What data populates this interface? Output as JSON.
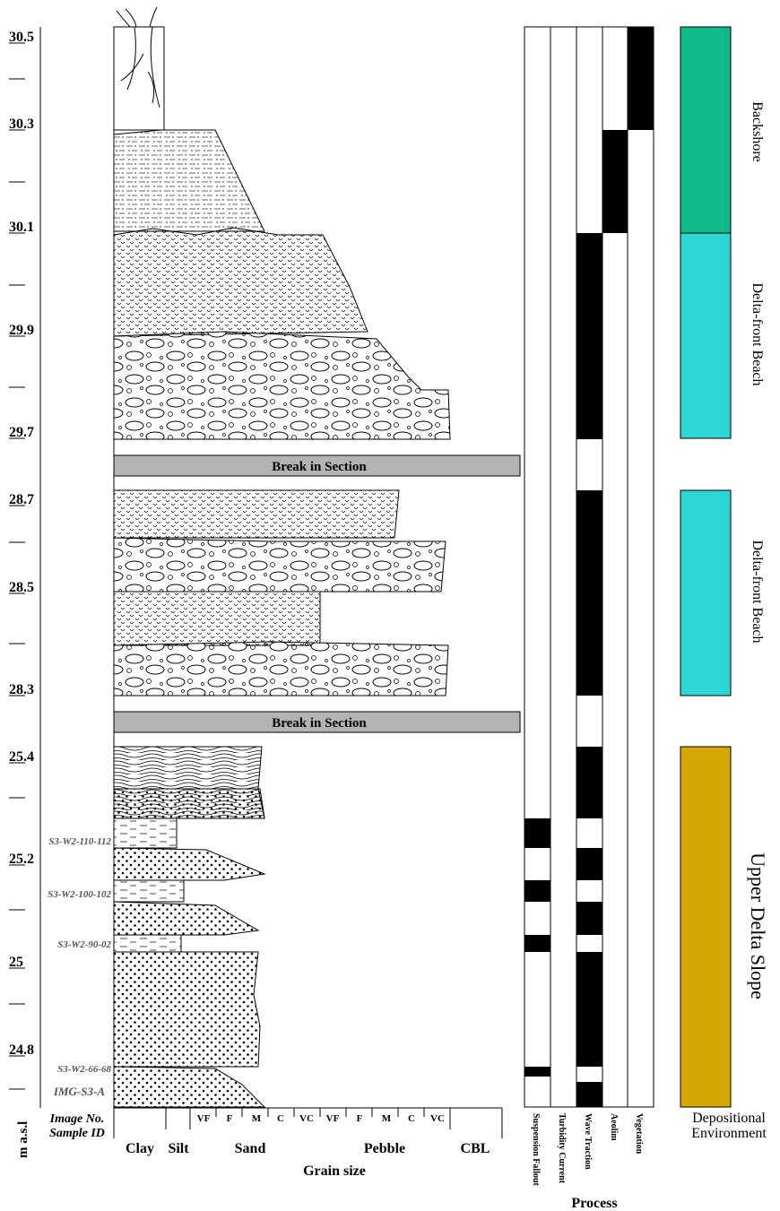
{
  "elevation_axis": {
    "label": "m a.s.l",
    "ticks": [
      "30.5",
      "30.3",
      "30.1",
      "29.9",
      "29.7",
      "28.7",
      "28.5",
      "28.3",
      "25.4",
      "25.2",
      "25",
      "24.8"
    ]
  },
  "sample_column": {
    "header_lines": [
      "Image No.",
      "Sample ID"
    ],
    "samples": [
      "S3-W2-110-112",
      "S3-W2-100-102",
      "S3-W2-90-02",
      "S3-W2-66-68",
      "IMG-S3-A"
    ]
  },
  "breaks": [
    "Break in Section",
    "Break in Section"
  ],
  "grain_size": {
    "title": "Grain size",
    "classes": [
      "Clay",
      "Silt",
      "Sand",
      "Pebble",
      "CBL"
    ],
    "sand_subclasses": [
      "VF",
      "F",
      "M",
      "C",
      "VC"
    ],
    "pebble_subclasses": [
      "VF",
      "F",
      "M",
      "C",
      "VC"
    ]
  },
  "process": {
    "title": "Process",
    "columns": [
      "Suspension Fallout",
      "Turbidity Current",
      "Wave Traction",
      "Aeolim",
      "Vegetation"
    ]
  },
  "environment": {
    "header_lines": [
      "Depositional",
      "Environment"
    ],
    "zones": [
      "Backshore",
      "Delta-front Beach",
      "Delta-front Beach",
      "Upper Delta Slope"
    ]
  }
}
